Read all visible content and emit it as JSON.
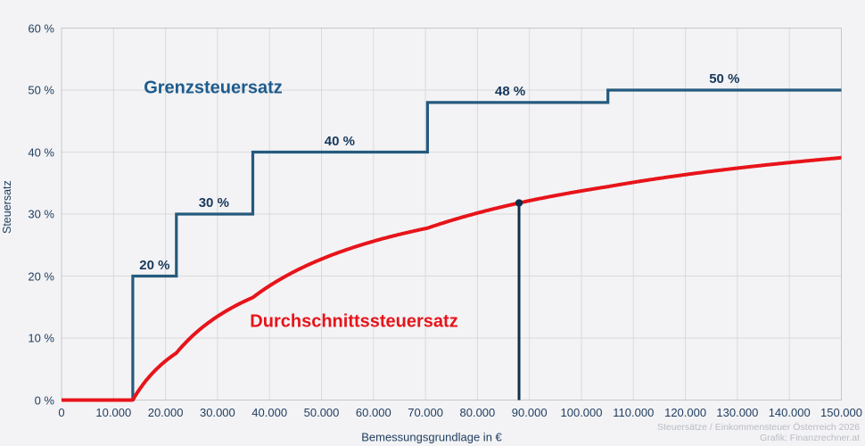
{
  "chart_data": {
    "type": "line",
    "xlabel": "Bemessungsgrundlage in €",
    "ylabel": "Steuersatz",
    "xlim": [
      0,
      150000
    ],
    "ylim": [
      0,
      60
    ],
    "grid": true,
    "x_ticks": {
      "values": [
        0,
        10000,
        20000,
        30000,
        40000,
        50000,
        60000,
        70000,
        80000,
        90000,
        100000,
        110000,
        120000,
        130000,
        140000,
        150000
      ],
      "labels": [
        "0",
        "10.000",
        "20.000",
        "30.000",
        "40.000",
        "50.000",
        "60.000",
        "70.000",
        "80.000",
        "90.000",
        "100.000",
        "110.000",
        "120.000",
        "130.000",
        "140.000",
        "150.000"
      ]
    },
    "y_ticks": {
      "values": [
        0,
        10,
        20,
        30,
        40,
        50,
        60
      ],
      "labels": [
        "0 %",
        "10 %",
        "20 %",
        "30 %",
        "40 %",
        "50 %",
        "60 %"
      ]
    },
    "series": [
      {
        "name": "Grenzsteuersatz",
        "kind": "step",
        "color": "#255a7e",
        "brackets": [
          {
            "from": 0,
            "to": 13700,
            "rate_pct": 0
          },
          {
            "from": 13700,
            "to": 22100,
            "rate_pct": 20
          },
          {
            "from": 22100,
            "to": 36800,
            "rate_pct": 30
          },
          {
            "from": 36800,
            "to": 70400,
            "rate_pct": 40
          },
          {
            "from": 70400,
            "to": 105100,
            "rate_pct": 48
          },
          {
            "from": 105100,
            "to": 150000,
            "rate_pct": 50
          }
        ],
        "step_labels": [
          {
            "text": "20 %",
            "anchor_x": 17900
          },
          {
            "text": "30 %",
            "anchor_x": 29300
          },
          {
            "text": "40 %",
            "anchor_x": 53500
          },
          {
            "text": "48 %",
            "anchor_x": 86300
          },
          {
            "text": "50 %",
            "anchor_x": 127500
          }
        ]
      },
      {
        "name": "Durchschnittssteuersatz",
        "kind": "curve",
        "color": "#e7141a",
        "note": "average tax rate = tax(x)/x computed from the marginal brackets"
      }
    ],
    "marker": {
      "x": 88000,
      "y_pct": 31.8,
      "color": "#0e304e"
    }
  },
  "footer": {
    "line1": "Steuersätze / Einkommensteuer Österreich 2026",
    "line2": "Grafik: Finanzrechner.at"
  }
}
